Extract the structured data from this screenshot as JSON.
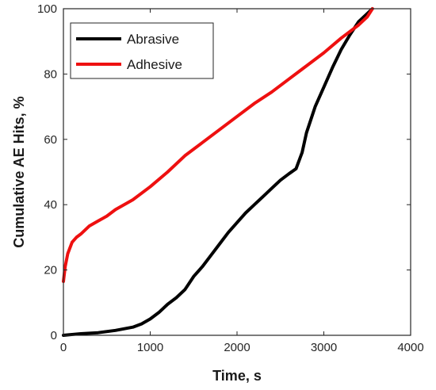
{
  "chart_data": {
    "type": "line",
    "title": "",
    "xlabel": "Time, s",
    "ylabel": "Cumulative AE Hits, %",
    "xlim": [
      0,
      4000
    ],
    "ylim": [
      0,
      100
    ],
    "xticks": [
      0,
      1000,
      2000,
      3000,
      4000
    ],
    "yticks": [
      0,
      20,
      40,
      60,
      80,
      100
    ],
    "grid": false,
    "legend_position": "top-left",
    "series": [
      {
        "name": "Abrasive",
        "color": "#000000",
        "x": [
          0,
          200,
          400,
          600,
          800,
          900,
          1000,
          1100,
          1200,
          1300,
          1400,
          1450,
          1500,
          1600,
          1700,
          1800,
          1900,
          2000,
          2100,
          2200,
          2300,
          2400,
          2500,
          2600,
          2680,
          2750,
          2800,
          2900,
          3000,
          3100,
          3200,
          3300,
          3400,
          3500,
          3560
        ],
        "y": [
          0,
          0.5,
          0.8,
          1.5,
          2.5,
          3.5,
          5,
          7,
          9.5,
          11.5,
          14,
          16,
          18,
          21,
          24.5,
          28,
          31.5,
          34.5,
          37.5,
          40,
          42.5,
          45,
          47.5,
          49.5,
          51,
          56,
          62,
          70,
          76,
          82,
          87.5,
          92,
          96,
          98.5,
          100
        ]
      },
      {
        "name": "Adhesive",
        "color": "#ee1010",
        "x": [
          0,
          20,
          50,
          100,
          150,
          200,
          300,
          400,
          500,
          600,
          800,
          1000,
          1200,
          1400,
          1600,
          1800,
          2000,
          2200,
          2400,
          2600,
          2800,
          3000,
          3200,
          3400,
          3500,
          3560
        ],
        "y": [
          16.5,
          21,
          25,
          28.5,
          30,
          31,
          33.5,
          35,
          36.5,
          38.5,
          41.5,
          45.5,
          50,
          55,
          59,
          63,
          67,
          71,
          74.5,
          78.5,
          82.5,
          86.5,
          91,
          95,
          97.5,
          100
        ]
      }
    ]
  }
}
